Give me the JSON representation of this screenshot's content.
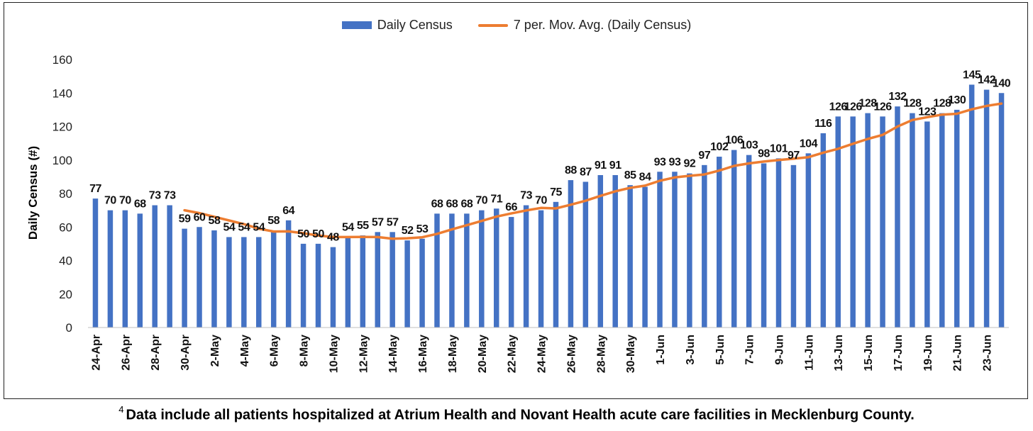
{
  "chart_data": {
    "type": "bar",
    "categories": [
      "24-Apr",
      "25-Apr",
      "26-Apr",
      "27-Apr",
      "28-Apr",
      "29-Apr",
      "30-Apr",
      "1-May",
      "2-May",
      "3-May",
      "4-May",
      "5-May",
      "6-May",
      "7-May",
      "8-May",
      "9-May",
      "10-May",
      "11-May",
      "12-May",
      "13-May",
      "14-May",
      "15-May",
      "16-May",
      "17-May",
      "18-May",
      "19-May",
      "20-May",
      "21-May",
      "22-May",
      "23-May",
      "24-May",
      "25-May",
      "26-May",
      "27-May",
      "28-May",
      "29-May",
      "30-May",
      "31-May",
      "1-Jun",
      "2-Jun",
      "3-Jun",
      "4-Jun",
      "5-Jun",
      "6-Jun",
      "7-Jun",
      "8-Jun",
      "9-Jun",
      "10-Jun",
      "11-Jun",
      "12-Jun",
      "13-Jun",
      "14-Jun",
      "15-Jun",
      "16-Jun",
      "17-Jun",
      "18-Jun",
      "19-Jun",
      "20-Jun",
      "21-Jun",
      "22-Jun",
      "23-Jun",
      "24-Jun"
    ],
    "tick_labels": [
      "24-Apr",
      "",
      "26-Apr",
      "",
      "28-Apr",
      "",
      "30-Apr",
      "",
      "2-May",
      "",
      "4-May",
      "",
      "6-May",
      "",
      "8-May",
      "",
      "10-May",
      "",
      "12-May",
      "",
      "14-May",
      "",
      "16-May",
      "",
      "18-May",
      "",
      "20-May",
      "",
      "22-May",
      "",
      "24-May",
      "",
      "26-May",
      "",
      "28-May",
      "",
      "30-May",
      "",
      "1-Jun",
      "",
      "3-Jun",
      "",
      "5-Jun",
      "",
      "7-Jun",
      "",
      "9-Jun",
      "",
      "11-Jun",
      "",
      "13-Jun",
      "",
      "15-Jun",
      "",
      "17-Jun",
      "",
      "19-Jun",
      "",
      "21-Jun",
      "",
      "23-Jun",
      ""
    ],
    "series": [
      {
        "name": "Daily Census",
        "kind": "bar",
        "color": "#4472C4",
        "values": [
          77,
          70,
          70,
          68,
          73,
          73,
          59,
          60,
          58,
          54,
          54,
          54,
          58,
          64,
          50,
          50,
          48,
          54,
          55,
          57,
          57,
          52,
          53,
          68,
          68,
          68,
          70,
          71,
          66,
          73,
          70,
          75,
          88,
          87,
          91,
          91,
          85,
          84,
          93,
          93,
          92,
          97,
          102,
          106,
          103,
          98,
          101,
          97,
          104,
          116,
          126,
          126,
          128,
          126,
          132,
          128,
          123,
          128,
          130,
          145,
          142,
          140
        ]
      },
      {
        "name": "7 per. Mov. Avg. (Daily Census)",
        "kind": "line",
        "color": "#ED7D31",
        "values": [
          null,
          null,
          null,
          null,
          null,
          null,
          70.0,
          68.3,
          66.1,
          63.9,
          61.7,
          59.0,
          57.3,
          57.4,
          56.3,
          54.9,
          54.0,
          54.0,
          54.1,
          54.0,
          53.0,
          53.3,
          53.9,
          55.9,
          58.6,
          61.1,
          63.6,
          66.2,
          68.1,
          69.9,
          71.4,
          71.1,
          73.3,
          75.7,
          78.6,
          81.3,
          83.4,
          84.7,
          87.6,
          89.6,
          90.6,
          91.4,
          93.7,
          96.5,
          98.0,
          99.1,
          100.0,
          100.8,
          101.7,
          104.4,
          106.7,
          109.7,
          112.6,
          115.0,
          120.0,
          123.9,
          125.6,
          127.1,
          127.6,
          130.3,
          132.3,
          133.7
        ]
      }
    ],
    "data_labels": [
      "77",
      "70",
      "70",
      "68",
      "73",
      "73",
      "59",
      "60",
      "58",
      "54",
      "54",
      "54",
      "58",
      "64",
      "50",
      "50",
      "48",
      "54",
      "55",
      "57",
      "57",
      "52",
      "53",
      "68",
      "68",
      "68",
      "70",
      "71",
      "66",
      "73",
      "70",
      "75",
      "88",
      "87",
      "91",
      "91",
      "85",
      "84",
      "93",
      "93",
      "92",
      "97",
      "102",
      "106",
      "103",
      "98",
      "101",
      "97",
      "104",
      "116",
      "126",
      "126",
      "128",
      "126",
      "132",
      "128",
      "123",
      "128",
      "130",
      "145",
      "142",
      "140"
    ],
    "ylabel": "Daily Census (#)",
    "xlabel": "",
    "ylim": [
      0,
      160
    ],
    "yticks": [
      "0",
      "20",
      "40",
      "60",
      "80",
      "100",
      "120",
      "140",
      "160"
    ],
    "grid": false,
    "legend_position": "top-center"
  },
  "footnote": {
    "marker": "4",
    "text": "Data include all patients hospitalized at Atrium Health and Novant Health acute care facilities in Mecklenburg County."
  }
}
